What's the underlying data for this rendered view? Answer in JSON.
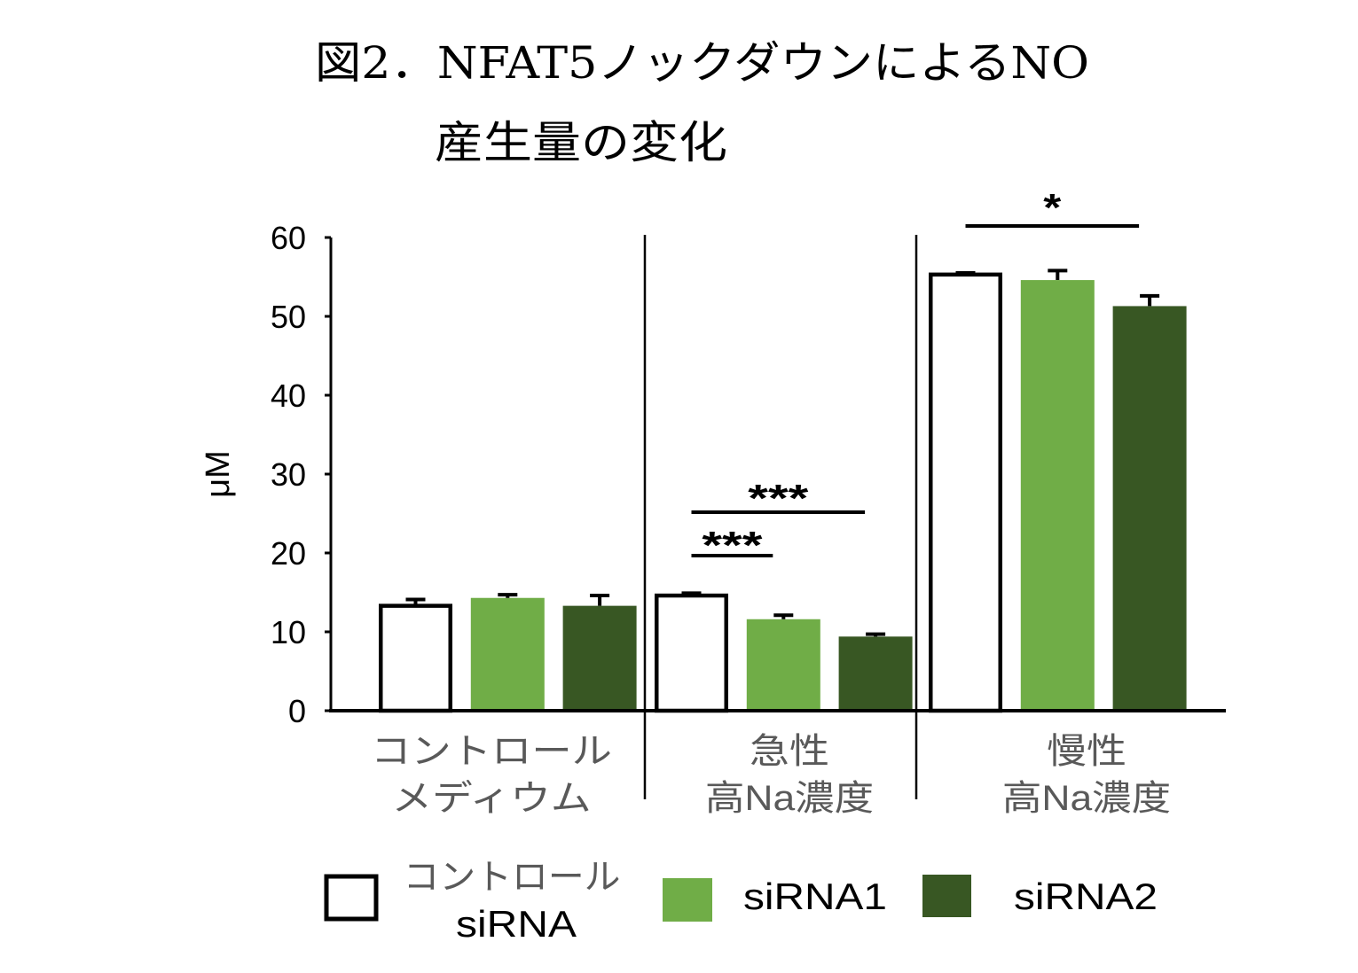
{
  "chart_data": {
    "type": "bar",
    "title": [
      "図2．NFAT5ノックダウンによるNO",
      "産生量の変化"
    ],
    "xlabel": "",
    "ylabel": "μM",
    "ylim": [
      0,
      60
    ],
    "yticks": [
      0,
      10,
      20,
      30,
      40,
      50,
      60
    ],
    "grid": false,
    "legend": "bottom",
    "categories": [
      [
        "コントロール",
        "メディウム"
      ],
      [
        "急性",
        "高Na濃度"
      ],
      [
        "慢性",
        "高Na濃度"
      ]
    ],
    "series": [
      {
        "name": [
          "コントロール",
          "siRNA"
        ],
        "color": "#ffffff",
        "edgecolor": "#000000",
        "values": [
          13.3,
          14.6,
          55.3
        ],
        "errors": [
          0.8,
          0.3,
          0.2
        ]
      },
      {
        "name": [
          "siRNA1"
        ],
        "color": "#70ad47",
        "values": [
          14.3,
          11.6,
          54.6
        ],
        "errors": [
          0.4,
          0.5,
          1.2
        ]
      },
      {
        "name": [
          "siRNA2"
        ],
        "color": "#385723",
        "values": [
          13.3,
          9.4,
          51.3
        ],
        "errors": [
          1.3,
          0.3,
          1.3
        ]
      }
    ],
    "annotations": [
      {
        "text": "***",
        "category": 1,
        "from_series": 0,
        "to_series": 1
      },
      {
        "text": "***",
        "category": 1,
        "from_series": 0,
        "to_series": 2
      },
      {
        "text": "*",
        "category": 2,
        "from_series": 0,
        "to_series": 2
      }
    ]
  }
}
